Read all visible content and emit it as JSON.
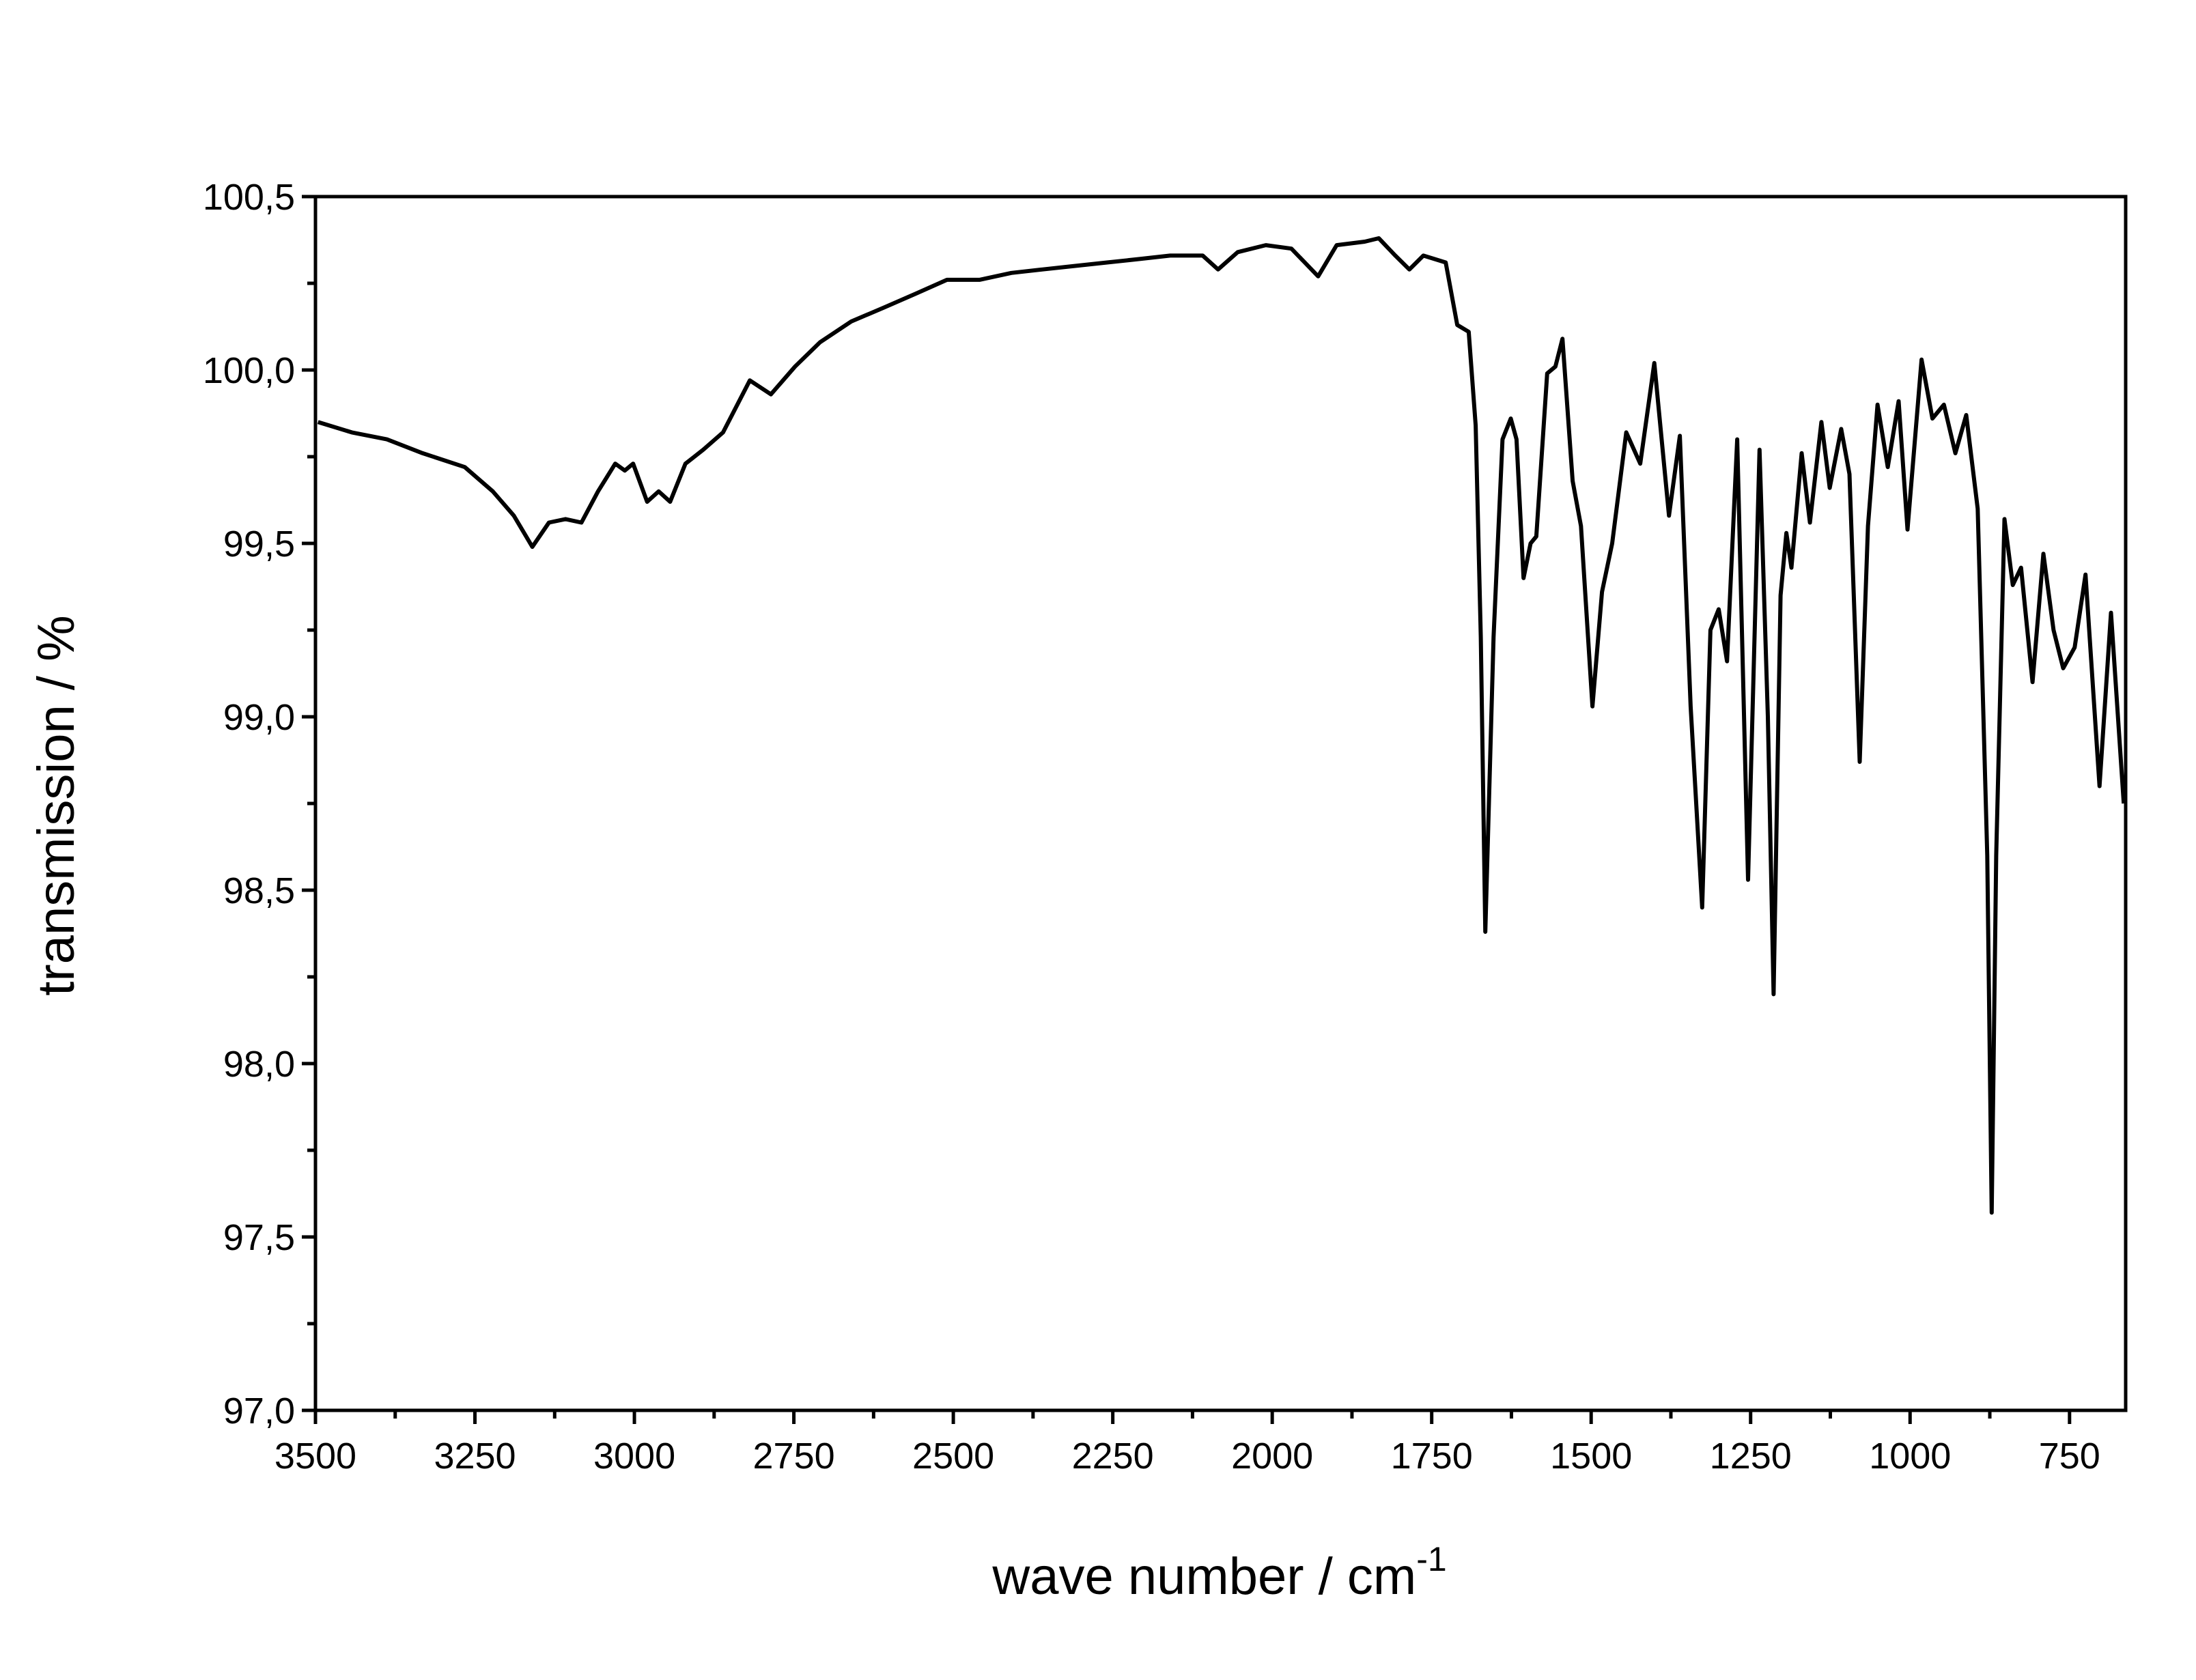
{
  "chart_data": {
    "type": "line",
    "x_label": {
      "text": "wave number / cm",
      "superscript": "-1"
    },
    "y_label": "transmission / %",
    "color": "#000000",
    "x": [
      3496,
      3443,
      3388,
      3332,
      3266,
      3222,
      3189,
      3160,
      3134,
      3108,
      3083,
      3057,
      3030,
      3015,
      3002,
      2980,
      2962,
      2944,
      2920,
      2892,
      2861,
      2819,
      2786,
      2748,
      2709,
      2660,
      2609,
      2559,
      2510,
      2459,
      2409,
      2360,
      2310,
      2259,
      2208,
      2160,
      2109,
      2085,
      2054,
      2010,
      1970,
      1928,
      1899,
      1855,
      1833,
      1807,
      1785,
      1763,
      1728,
      1710,
      1692,
      1681,
      1673,
      1666,
      1653,
      1639,
      1626,
      1617,
      1606,
      1595,
      1586,
      1569,
      1556,
      1545,
      1529,
      1516,
      1498,
      1483,
      1467,
      1445,
      1423,
      1401,
      1378,
      1361,
      1344,
      1326,
      1313,
      1300,
      1287,
      1271,
      1254,
      1236,
      1223,
      1214,
      1203,
      1194,
      1186,
      1170,
      1157,
      1139,
      1126,
      1108,
      1095,
      1079,
      1066,
      1051,
      1035,
      1018,
      1004,
      982,
      965,
      947,
      929,
      912,
      894,
      879,
      872,
      865,
      852,
      839,
      826,
      808,
      791,
      775,
      760,
      742,
      725,
      703,
      685,
      665
    ],
    "values": [
      99.85,
      99.82,
      99.8,
      99.76,
      99.72,
      99.65,
      99.58,
      99.49,
      99.56,
      99.57,
      99.56,
      99.65,
      99.73,
      99.71,
      99.73,
      99.62,
      99.65,
      99.62,
      99.73,
      99.77,
      99.82,
      99.97,
      99.93,
      100.01,
      100.08,
      100.14,
      100.18,
      100.22,
      100.26,
      100.26,
      100.28,
      100.29,
      100.3,
      100.31,
      100.32,
      100.33,
      100.33,
      100.29,
      100.34,
      100.36,
      100.35,
      100.27,
      100.36,
      100.37,
      100.38,
      100.33,
      100.29,
      100.33,
      100.31,
      100.13,
      100.11,
      99.84,
      99.23,
      98.38,
      99.23,
      99.8,
      99.86,
      99.8,
      99.4,
      99.5,
      99.52,
      99.99,
      100.01,
      100.09,
      99.68,
      99.55,
      99.03,
      99.36,
      99.5,
      99.82,
      99.73,
      100.02,
      99.58,
      99.81,
      99.03,
      98.45,
      99.25,
      99.31,
      99.16,
      99.8,
      98.53,
      99.77,
      99.0,
      98.2,
      99.35,
      99.53,
      99.43,
      99.76,
      99.56,
      99.85,
      99.66,
      99.83,
      99.7,
      98.87,
      99.55,
      99.9,
      99.72,
      99.91,
      99.54,
      100.03,
      99.86,
      99.9,
      99.76,
      99.87,
      99.6,
      98.6,
      97.57,
      98.6,
      99.57,
      99.38,
      99.43,
      99.1,
      99.47,
      99.25,
      99.14,
      99.2,
      99.41,
      98.8,
      99.3,
      98.75
    ],
    "xlim": [
      3500,
      662
    ],
    "ylim": [
      97.0,
      100.5
    ],
    "xticks": [
      3500,
      3250,
      3000,
      2750,
      2500,
      2250,
      2000,
      1750,
      1500,
      1250,
      1000,
      750
    ],
    "xticks_minor": [
      3375,
      3125,
      2875,
      2625,
      2375,
      2125,
      1875,
      1625,
      1375,
      1125,
      875
    ],
    "yticks": [
      {
        "value": 97.0,
        "label": "97,0"
      },
      {
        "value": 97.5,
        "label": "97,5"
      },
      {
        "value": 98.0,
        "label": "98,0"
      },
      {
        "value": 98.5,
        "label": "98,5"
      },
      {
        "value": 99.0,
        "label": "99,0"
      },
      {
        "value": 99.5,
        "label": "99,5"
      },
      {
        "value": 100.0,
        "label": "100,0"
      },
      {
        "value": 100.5,
        "label": "100,5"
      }
    ],
    "yticks_minor": [
      97.25,
      97.75,
      98.25,
      98.75,
      99.25,
      99.75,
      100.25
    ]
  }
}
